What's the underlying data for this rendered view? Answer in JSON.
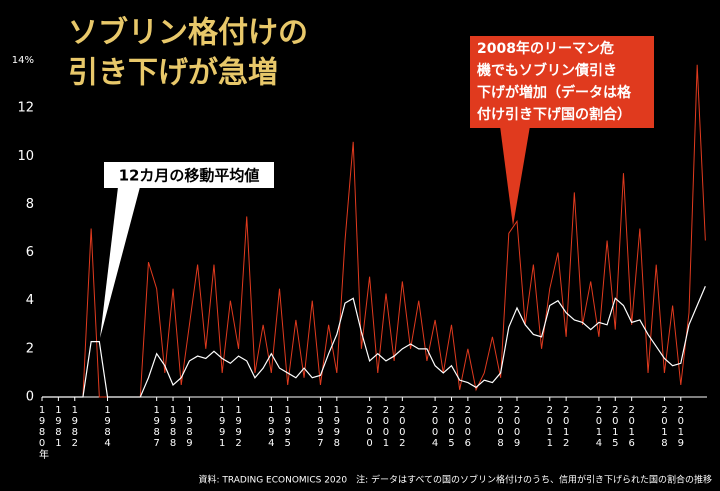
{
  "chart_data": {
    "type": "line",
    "title": [
      "ソブリン格付けの",
      "引き下げが急増"
    ],
    "annotations": [
      "12カ月の移動平均値",
      "2008年のリーマン危",
      "機でもソブリン債引き",
      "下げが増加（データは格",
      "付け引き下げ国の割合）"
    ],
    "footnote": "資料: TRADING ECONOMICS 2020　注: データはすべての国のソブリン格付けのうち、信用が引き下げられた国の割合の推移",
    "x": [
      1980,
      1980.5,
      1981,
      1981.5,
      1982,
      1982.5,
      1983,
      1983.5,
      1984,
      1984.5,
      1985,
      1985.5,
      1986,
      1986.5,
      1987,
      1987.5,
      1988,
      1988.5,
      1989,
      1989.5,
      1990,
      1990.5,
      1991,
      1991.5,
      1992,
      1992.5,
      1993,
      1993.5,
      1994,
      1994.5,
      1995,
      1995.5,
      1996,
      1996.5,
      1997,
      1997.5,
      1998,
      1998.5,
      1999,
      1999.5,
      2000,
      2000.5,
      2001,
      2001.5,
      2002,
      2002.5,
      2003,
      2003.5,
      2004,
      2004.5,
      2005,
      2005.5,
      2006,
      2006.5,
      2007,
      2007.5,
      2008,
      2008.5,
      2009,
      2009.5,
      2010,
      2010.5,
      2011,
      2011.5,
      2012,
      2012.5,
      2013,
      2013.5,
      2014,
      2014.5,
      2015,
      2015.5,
      2016,
      2016.5,
      2017,
      2017.5,
      2018,
      2018.5,
      2019,
      2019.5,
      2020,
      2020.5
    ],
    "series": [
      {
        "color": "#e03a1e",
        "values": [
          0,
          0,
          0,
          0,
          0,
          0,
          7,
          0,
          0,
          0,
          0,
          0,
          0,
          5.6,
          4.5,
          1,
          4.5,
          0.5,
          3,
          5.5,
          2,
          5.5,
          1,
          4,
          2,
          7.5,
          1,
          3,
          1,
          4.5,
          0.5,
          3.2,
          0.8,
          4,
          0.5,
          3,
          1,
          6.5,
          10.6,
          2,
          5,
          1,
          4.3,
          1.5,
          4.8,
          2,
          4,
          1.5,
          3.2,
          1,
          3,
          0.3,
          2,
          0.3,
          1,
          2.5,
          0.8,
          6.8,
          7.3,
          3,
          5.5,
          2,
          4.5,
          6,
          2.5,
          8.5,
          3,
          4.8,
          2.5,
          6.5,
          2.8,
          9.3,
          3,
          7,
          1,
          5.5,
          1,
          3.8,
          0.5,
          3.5,
          13.8,
          6.5
        ]
      },
      {
        "color": "#ffffff",
        "values": [
          0,
          0,
          0,
          0,
          0,
          0,
          2.3,
          2.3,
          0,
          0,
          0,
          0,
          0,
          0.8,
          1.8,
          1.3,
          0.5,
          0.8,
          1.5,
          1.7,
          1.6,
          1.9,
          1.6,
          1.4,
          1.7,
          1.5,
          0.8,
          1.2,
          1.8,
          1.2,
          1,
          0.8,
          1.2,
          0.8,
          0.9,
          1.8,
          2.6,
          3.9,
          4.1,
          2.7,
          1.5,
          1.8,
          1.5,
          1.7,
          2,
          2.2,
          2,
          2,
          1.3,
          1,
          1.3,
          0.7,
          0.6,
          0.4,
          0.7,
          0.6,
          1,
          2.9,
          3.7,
          3,
          2.6,
          2.5,
          3.8,
          4,
          3.5,
          3.2,
          3.1,
          2.8,
          3.1,
          3,
          4.1,
          3.8,
          3.1,
          3.2,
          2.6,
          2.1,
          1.6,
          1.3,
          1.4,
          3,
          3.8,
          4.6
        ]
      }
    ],
    "xlim": [
      1980,
      2020.6
    ],
    "xticks": [
      {
        "value": 1980,
        "label": "1980年"
      },
      1981,
      1982,
      1984,
      1987,
      1988,
      1989,
      1991,
      1992,
      1994,
      1995,
      1997,
      1998,
      2000,
      2001,
      2002,
      2004,
      2005,
      2006,
      2008,
      2009,
      2011,
      2012,
      2014,
      2015,
      2016,
      2018,
      2019
    ],
    "ylim": [
      0,
      14
    ],
    "yticks": [
      0,
      2,
      4,
      6,
      8,
      10,
      12,
      {
        "value": 14,
        "label": "14%"
      }
    ]
  }
}
